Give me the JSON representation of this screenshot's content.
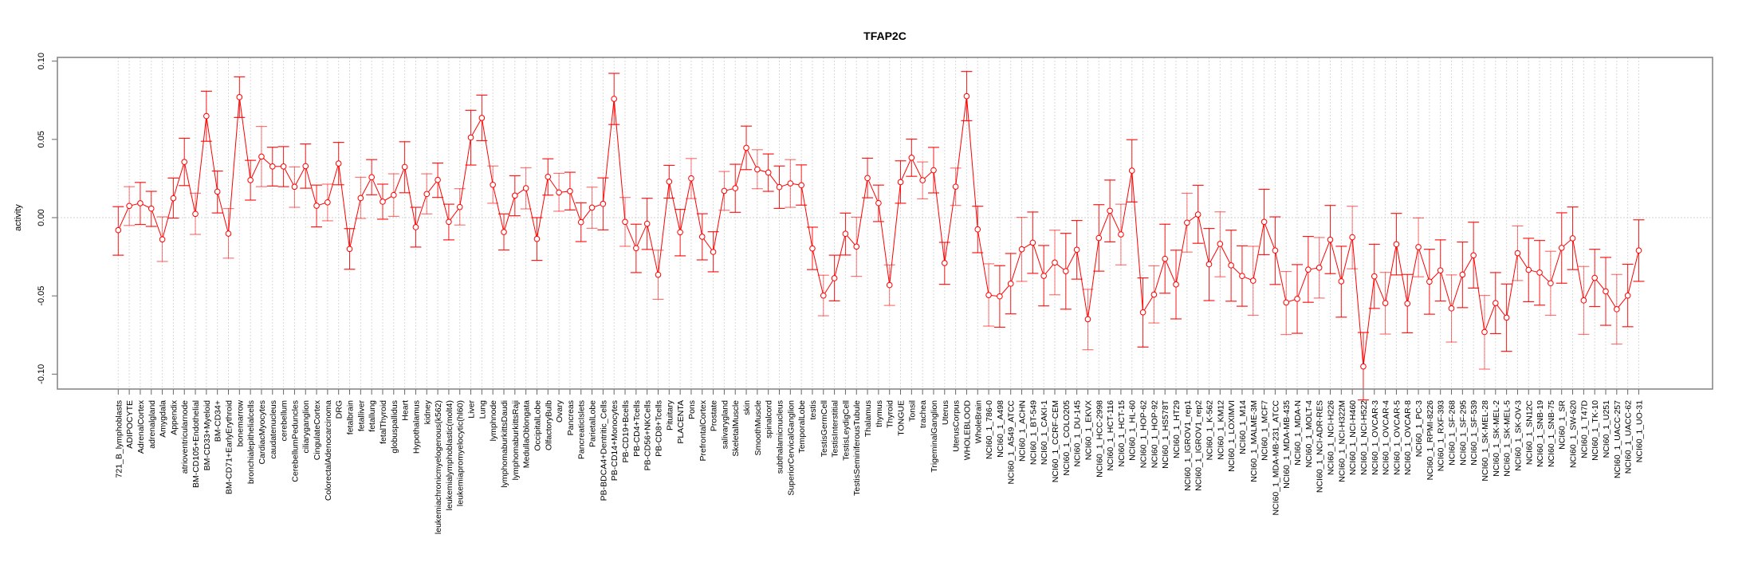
{
  "chart_data": {
    "type": "line",
    "title": "TFAP2C",
    "xlabel": "",
    "ylabel": "activity",
    "ylim": [
      -0.125,
      0.105
    ],
    "yticks": [
      -0.1,
      -0.05,
      0.0,
      0.05,
      0.1
    ],
    "ytick_labels": [
      "-0.10",
      "-0.05",
      "0.00",
      "0.05",
      "0.10"
    ],
    "grid": "vertical dotted per category, horizontal dotted at 0",
    "colors": {
      "series": "#ff0000",
      "grid": "#d9d9d9",
      "frame": "#808080"
    },
    "categories": [
      "721_B_lymphoblasts",
      "ADIPOCYTE",
      "AdrenalCortex",
      "adrenalgland",
      "Amygdala",
      "Appendix",
      "atrioventricularnode",
      "BM-CD105+Endothelial",
      "BM-CD33+Myeloid",
      "BM-CD34+",
      "BM-CD71+EarlyErythroid",
      "bonemarrow",
      "bronchialepithelialcells",
      "CardiacMyocytes",
      "caudatenucleus",
      "cerebellum",
      "CerebellumPeduncles",
      "ciliaryganglion",
      "CingulateCortex",
      "ColorectalAdenocarcinoma",
      "DRG",
      "fetalbrain",
      "fetalliver",
      "fetallung",
      "fetalThyroid",
      "globuspallidus",
      "Heart",
      "Hypothalamus",
      "kidney",
      "leukemiachronicmyelogenous(k562)",
      "leukemialymphoblastic(molt4)",
      "leukemiapromyelocytic(hl60)",
      "Liver",
      "Lung",
      "lymphnode",
      "lymphomaburkittsDaudi",
      "lymphomaburkittsRaji",
      "MedullaOblongata",
      "OccipitalLobe",
      "OlfactoryBulb",
      "Ovary",
      "Pancreas",
      "PancreaticIslets",
      "ParietalLobe",
      "PB-BDCA4+Dentritic_Cells",
      "PB-CD14+Monocytes",
      "PB-CD19+Bcells",
      "PB-CD4+Tcells",
      "PB-CD56+NKCells",
      "PB-CD8+Tcells",
      "Pituitary",
      "PLACENTA",
      "Pons",
      "PrefrontalCortex",
      "Prostate",
      "salivarygland",
      "SkeletalMuscle",
      "skin",
      "SmoothMuscle",
      "spinalcord",
      "subthalamicnucleus",
      "SuperiorCervicalGanglion",
      "TemporalLobe",
      "testis",
      "TestisGermCell",
      "TestisInterstitial",
      "TestisLeydigCell",
      "TestisSeminiferousTubule",
      "Thalamus",
      "thymus",
      "Thyroid",
      "TONGUE",
      "Tonsil",
      "trachea",
      "TrigeminalGanglion",
      "Uterus",
      "UterusCorpus",
      "WHOLEBLOOD",
      "WholeBrain",
      "NCI60_1_786-0",
      "NCI60_1_A498",
      "NCI60_1_A549_ATCC",
      "NCI60_1_ACHN",
      "NCI60_1_BT-549",
      "NCI60_1_CAKI-1",
      "NCI60_1_CCRF-CEM",
      "NCI60_1_COLO205",
      "NCI60_1_DU-145",
      "NCI60_1_EKVX",
      "NCI60_1_HCC-2998",
      "NCI60_1_HCT-116",
      "NCI60_1_HCT-15",
      "NCI60_1_HL-60",
      "NCI60_1_HOP-62",
      "NCI60_1_HOP-92",
      "NCI60_1_HS578T",
      "NCI60_1_HT29",
      "NCI60_1_IGROV1_rep1",
      "NCI60_1_IGROV1_rep2",
      "NCI60_1_K-562",
      "NCI60_1_KM12",
      "NCI60_1_LOXIMVI",
      "NCI60_1_M14",
      "NCI60_1_MALME-3M",
      "NCI60_1_MCF7",
      "NCI60_1_MDA-MB-231_ATCC",
      "NCI60_1_MDA-MB-435",
      "NCI60_1_MDA-N",
      "NCI60_1_MOLT-4",
      "NCI60_1_NCI-ADR-RES",
      "NCI60_1_NCI-H226",
      "NCI60_1_NCI-H322M",
      "NCI60_1_NCI-H460",
      "NCI60_1_NCI-H522",
      "NCI60_1_OVCAR-3",
      "NCI60_1_OVCAR-4",
      "NCI60_1_OVCAR-5",
      "NCI60_1_OVCAR-8",
      "NCI60_1_PC-3",
      "NCI60_1_RPMI-8226",
      "NCI60_1_RXF-393",
      "NCI60_1_SF-268",
      "NCI60_1_SF-295",
      "NCI60_1_SF-539",
      "NCI60_1_SK-MEL-28",
      "NCI60_1_SK-MEL-2",
      "NCI60_1_SK-MEL-5",
      "NCI60_1_SK-OV-3",
      "NCI60_1_SN12C",
      "NCI60_1_SNB-19",
      "NCI60_1_SNB-75",
      "NCI60_1_SR",
      "NCI60_1_SW-620",
      "NCI60_1_T47D",
      "NCI60_1_TK-10",
      "NCI60_1_U251",
      "NCI60_1_UACC-257",
      "NCI60_1_UACC-62",
      "NCI60_1_UO-31"
    ],
    "series": [
      {
        "name": "TFAP2C activity",
        "values": [
          -0.008,
          0.0075,
          0.0092,
          0.0058,
          -0.0139,
          0.0124,
          0.0356,
          0.0024,
          0.0649,
          0.0166,
          -0.0102,
          0.077,
          0.024,
          0.039,
          0.0327,
          0.0327,
          0.0197,
          0.0329,
          0.0076,
          0.0098,
          0.0346,
          -0.02,
          0.0125,
          0.0258,
          0.0102,
          0.0144,
          0.0324,
          -0.0061,
          0.0151,
          0.0241,
          -0.0027,
          0.0068,
          0.0512,
          0.0637,
          0.021,
          -0.0092,
          0.0141,
          0.0188,
          -0.0136,
          0.0261,
          0.0161,
          0.0169,
          -0.0029,
          0.0064,
          0.0088,
          0.0759,
          -0.0027,
          -0.0195,
          -0.0039,
          -0.0365,
          0.023,
          -0.0093,
          0.0251,
          -0.0122,
          -0.0219,
          0.0171,
          0.0188,
          0.0446,
          0.0308,
          0.0288,
          0.0195,
          0.0219,
          0.0207,
          -0.0197,
          -0.0498,
          -0.0387,
          -0.0103,
          -0.0185,
          0.0253,
          0.0093,
          -0.0431,
          0.0227,
          0.0383,
          0.0239,
          0.0303,
          -0.029,
          0.0198,
          0.0776,
          -0.0075,
          -0.0495,
          -0.0503,
          -0.0422,
          -0.0202,
          -0.016,
          -0.0372,
          -0.0287,
          -0.0342,
          -0.0205,
          -0.0649,
          -0.013,
          0.0044,
          -0.0107,
          0.03,
          -0.0605,
          -0.0492,
          -0.0263,
          -0.0427,
          -0.0032,
          0.002,
          -0.0298,
          -0.0168,
          -0.0305,
          -0.0373,
          -0.0403,
          -0.0027,
          -0.021,
          -0.0542,
          -0.0519,
          -0.0332,
          -0.032,
          -0.0141,
          -0.0407,
          -0.0125,
          -0.0951,
          -0.0375,
          -0.0546,
          -0.017,
          -0.0549,
          -0.0188,
          -0.0409,
          -0.0337,
          -0.058,
          -0.0364,
          -0.0241,
          -0.0731,
          -0.0546,
          -0.0639,
          -0.0227,
          -0.0334,
          -0.0351,
          -0.0419,
          -0.0193,
          -0.0132,
          -0.0529,
          -0.0385,
          -0.0471,
          -0.0585,
          -0.0498,
          -0.021
        ],
        "lower": [
          -0.024,
          -0.005,
          -0.0044,
          -0.0056,
          -0.028,
          -0.0003,
          0.0205,
          -0.0107,
          0.0488,
          0.003,
          -0.0259,
          0.064,
          0.0112,
          0.0198,
          0.0202,
          0.0198,
          0.0066,
          0.0188,
          -0.0059,
          -0.002,
          0.021,
          -0.033,
          -0.0005,
          0.0146,
          -0.001,
          0.0008,
          0.0159,
          -0.0188,
          0.0024,
          0.0129,
          -0.0142,
          -0.0047,
          0.0336,
          0.0492,
          0.0092,
          -0.0207,
          0.0012,
          0.0056,
          -0.0273,
          0.0144,
          0.0041,
          0.0049,
          -0.0153,
          -0.0068,
          -0.0078,
          0.0595,
          -0.0183,
          -0.0351,
          -0.0203,
          -0.0522,
          0.0125,
          -0.0244,
          0.0122,
          -0.027,
          -0.0346,
          0.0047,
          0.0034,
          0.0307,
          0.0185,
          0.0168,
          0.0059,
          0.0066,
          0.008,
          -0.0332,
          -0.0627,
          -0.0532,
          -0.0239,
          -0.0375,
          0.0127,
          -0.0025,
          -0.0561,
          0.0092,
          0.0264,
          0.012,
          0.0158,
          -0.0426,
          0.0078,
          0.0619,
          -0.0224,
          -0.0693,
          -0.07,
          -0.0615,
          -0.0407,
          -0.0356,
          -0.0564,
          -0.0493,
          -0.0585,
          -0.0393,
          -0.0844,
          -0.0342,
          -0.0155,
          -0.0302,
          0.01,
          -0.0827,
          -0.0673,
          -0.0483,
          -0.0647,
          -0.022,
          -0.0164,
          -0.053,
          -0.0378,
          -0.0534,
          -0.0566,
          -0.0624,
          -0.0237,
          -0.0427,
          -0.0747,
          -0.0739,
          -0.0541,
          -0.0514,
          -0.0358,
          -0.0636,
          -0.0327,
          -0.1165,
          -0.058,
          -0.0744,
          -0.0366,
          -0.0736,
          -0.0378,
          -0.0617,
          -0.0533,
          -0.0795,
          -0.0575,
          -0.045,
          -0.0968,
          -0.0741,
          -0.0854,
          -0.0402,
          -0.0537,
          -0.0559,
          -0.0624,
          -0.0419,
          -0.0332,
          -0.0746,
          -0.0568,
          -0.0688,
          -0.0808,
          -0.0697,
          -0.0407
        ],
        "upper": [
          0.007,
          0.0198,
          0.0225,
          0.0168,
          0.0005,
          0.0253,
          0.0507,
          0.0156,
          0.0808,
          0.0298,
          0.0058,
          0.09,
          0.0366,
          0.0583,
          0.045,
          0.0454,
          0.0324,
          0.0471,
          0.0208,
          0.0214,
          0.0481,
          -0.007,
          0.0258,
          0.0371,
          0.0214,
          0.028,
          0.0485,
          0.0066,
          0.028,
          0.0349,
          0.0086,
          0.0185,
          0.0686,
          0.0783,
          0.033,
          0.0024,
          0.0268,
          0.0319,
          0.0,
          0.0376,
          0.0283,
          0.029,
          0.0095,
          0.0195,
          0.0254,
          0.0922,
          0.0129,
          -0.0042,
          0.0124,
          -0.0208,
          0.0334,
          0.0053,
          0.0378,
          0.0025,
          -0.009,
          0.0295,
          0.0341,
          0.0585,
          0.0434,
          0.0407,
          0.033,
          0.0371,
          0.0337,
          -0.0061,
          -0.0368,
          -0.024,
          0.0029,
          0.0003,
          0.038,
          0.0208,
          -0.0302,
          0.0363,
          0.0502,
          0.0356,
          0.0449,
          -0.0158,
          0.0317,
          0.0934,
          0.0073,
          -0.0295,
          -0.0307,
          -0.0229,
          0.0002,
          0.0036,
          -0.0178,
          -0.008,
          -0.01,
          -0.0018,
          -0.0458,
          0.0083,
          0.024,
          0.0086,
          0.0498,
          -0.0385,
          -0.0308,
          -0.0042,
          -0.0208,
          0.0156,
          0.0207,
          -0.0069,
          0.0037,
          -0.008,
          -0.018,
          -0.0183,
          0.0181,
          0.0005,
          -0.0344,
          -0.03,
          -0.012,
          -0.0127,
          0.0078,
          -0.0183,
          0.0073,
          -0.0734,
          -0.017,
          -0.035,
          0.0027,
          -0.0363,
          -0.0002,
          -0.0202,
          -0.0142,
          -0.0366,
          -0.0156,
          -0.0029,
          -0.0497,
          -0.0351,
          -0.0424,
          -0.0053,
          -0.0132,
          -0.0146,
          -0.0215,
          0.0031,
          0.0068,
          -0.0312,
          -0.0202,
          -0.0254,
          -0.0363,
          -0.0298,
          -0.0014
        ]
      }
    ]
  }
}
